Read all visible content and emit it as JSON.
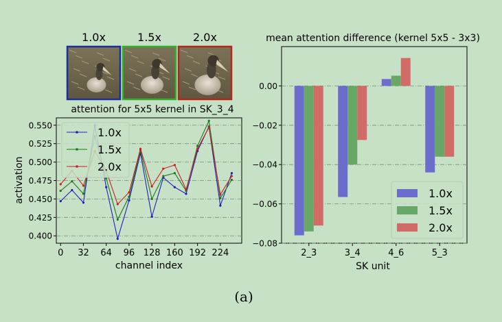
{
  "images": [
    {
      "label": "1.0x",
      "border_color": "#1a2f9c"
    },
    {
      "label": "1.5x",
      "border_color": "#2fb02f"
    },
    {
      "label": "2.0x",
      "border_color": "#b3261e"
    }
  ],
  "caption": "(a)",
  "chart_data": [
    {
      "type": "line",
      "title": "attention for 5x5 kernel in SK_3_4",
      "xlabel": "channel index",
      "ylabel": "activation",
      "xlim": [
        -6,
        254
      ],
      "ylim": [
        0.39,
        0.56
      ],
      "xticks": [
        0,
        32,
        64,
        96,
        128,
        160,
        192,
        224
      ],
      "yticks": [
        0.4,
        0.425,
        0.45,
        0.475,
        0.5,
        0.525,
        0.55
      ],
      "ytick_labels": [
        "0.400",
        "0.425",
        "0.450",
        "0.475",
        "0.500",
        "0.525",
        "0.550"
      ],
      "grid": "horizontal dash-dot",
      "legend": "top-left",
      "x": [
        0,
        16,
        32,
        48,
        64,
        80,
        96,
        112,
        128,
        144,
        160,
        176,
        192,
        208,
        224,
        240
      ],
      "series": [
        {
          "name": "1.0x",
          "color": "#1f1fbf",
          "values": [
            0.447,
            0.462,
            0.445,
            0.55,
            0.466,
            0.396,
            0.448,
            0.512,
            0.426,
            0.479,
            0.466,
            0.457,
            0.515,
            0.548,
            0.441,
            0.485
          ]
        },
        {
          "name": "1.5x",
          "color": "#1a7a1a",
          "values": [
            0.461,
            0.474,
            0.457,
            0.535,
            0.478,
            0.422,
            0.453,
            0.516,
            0.45,
            0.481,
            0.485,
            0.461,
            0.522,
            0.556,
            0.451,
            0.476
          ]
        },
        {
          "name": "2.0x",
          "color": "#c82020",
          "values": [
            0.47,
            0.488,
            0.468,
            0.515,
            0.488,
            0.443,
            0.459,
            0.518,
            0.467,
            0.491,
            0.496,
            0.463,
            0.518,
            0.547,
            0.456,
            0.481
          ]
        }
      ]
    },
    {
      "type": "bar",
      "title": "mean attention difference (kernel 5x5 - 3x3)",
      "xlabel": "SK unit",
      "ylabel": "",
      "categories": [
        "2_3",
        "3_4",
        "4_6",
        "5_3"
      ],
      "ylim": [
        -0.08,
        0.02
      ],
      "yticks": [
        0.0,
        -0.02,
        -0.04,
        -0.06,
        -0.08
      ],
      "ytick_labels": [
        "0.00",
        "−0.02",
        "−0.04",
        "−0.06",
        "−0.08"
      ],
      "grid": "horizontal dash-dot",
      "legend": "bottom-right",
      "series": [
        {
          "name": "1.0x",
          "color": "#6c6ccd",
          "values": [
            -0.076,
            -0.0565,
            0.0035,
            -0.044
          ]
        },
        {
          "name": "1.5x",
          "color": "#67a867",
          "values": [
            -0.074,
            -0.04,
            0.0052,
            -0.036
          ]
        },
        {
          "name": "2.0x",
          "color": "#d16b66",
          "values": [
            -0.071,
            -0.0275,
            0.0142,
            -0.036
          ]
        }
      ]
    }
  ]
}
